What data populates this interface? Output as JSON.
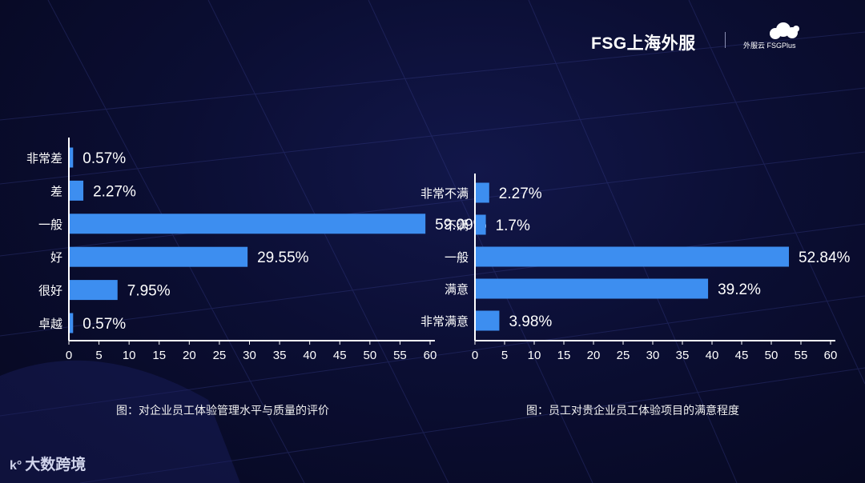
{
  "brand": {
    "main": "FSG上海外服",
    "sub": "外服云 FSGPlus"
  },
  "watermark": "大数跨境",
  "colors": {
    "bar": "#3d8ef0",
    "axis": "#ffffff",
    "text": "#ffffff"
  },
  "chart_data": [
    {
      "type": "bar",
      "orientation": "horizontal",
      "categories": [
        "非常差",
        "差",
        "一般",
        "好",
        "很好",
        "卓越"
      ],
      "values": [
        0.57,
        2.27,
        59.09,
        29.55,
        7.95,
        0.57
      ],
      "value_labels": [
        "0.57%",
        "2.27%",
        "59.09%",
        "29.55%",
        "7.95%",
        "0.57%"
      ],
      "xticks": [
        "0",
        "5",
        "10",
        "15",
        "20",
        "25",
        "30",
        "35",
        "40",
        "45",
        "50",
        "55",
        "60"
      ],
      "xlim": [
        0,
        60
      ],
      "caption": "图：对企业员工体验管理水平与质量的评价"
    },
    {
      "type": "bar",
      "orientation": "horizontal",
      "categories": [
        "非常不满",
        "不满",
        "一般",
        "满意",
        "非常满意"
      ],
      "values": [
        2.27,
        1.7,
        52.84,
        39.2,
        3.98
      ],
      "value_labels": [
        "2.27%",
        "1.7%",
        "52.84%",
        "39.2%",
        "3.98%"
      ],
      "xticks": [
        "0",
        "5",
        "10",
        "15",
        "20",
        "25",
        "30",
        "35",
        "40",
        "45",
        "50",
        "55",
        "60"
      ],
      "xlim": [
        0,
        60
      ],
      "caption": "图：员工对贵企业员工体验项目的满意程度"
    }
  ]
}
